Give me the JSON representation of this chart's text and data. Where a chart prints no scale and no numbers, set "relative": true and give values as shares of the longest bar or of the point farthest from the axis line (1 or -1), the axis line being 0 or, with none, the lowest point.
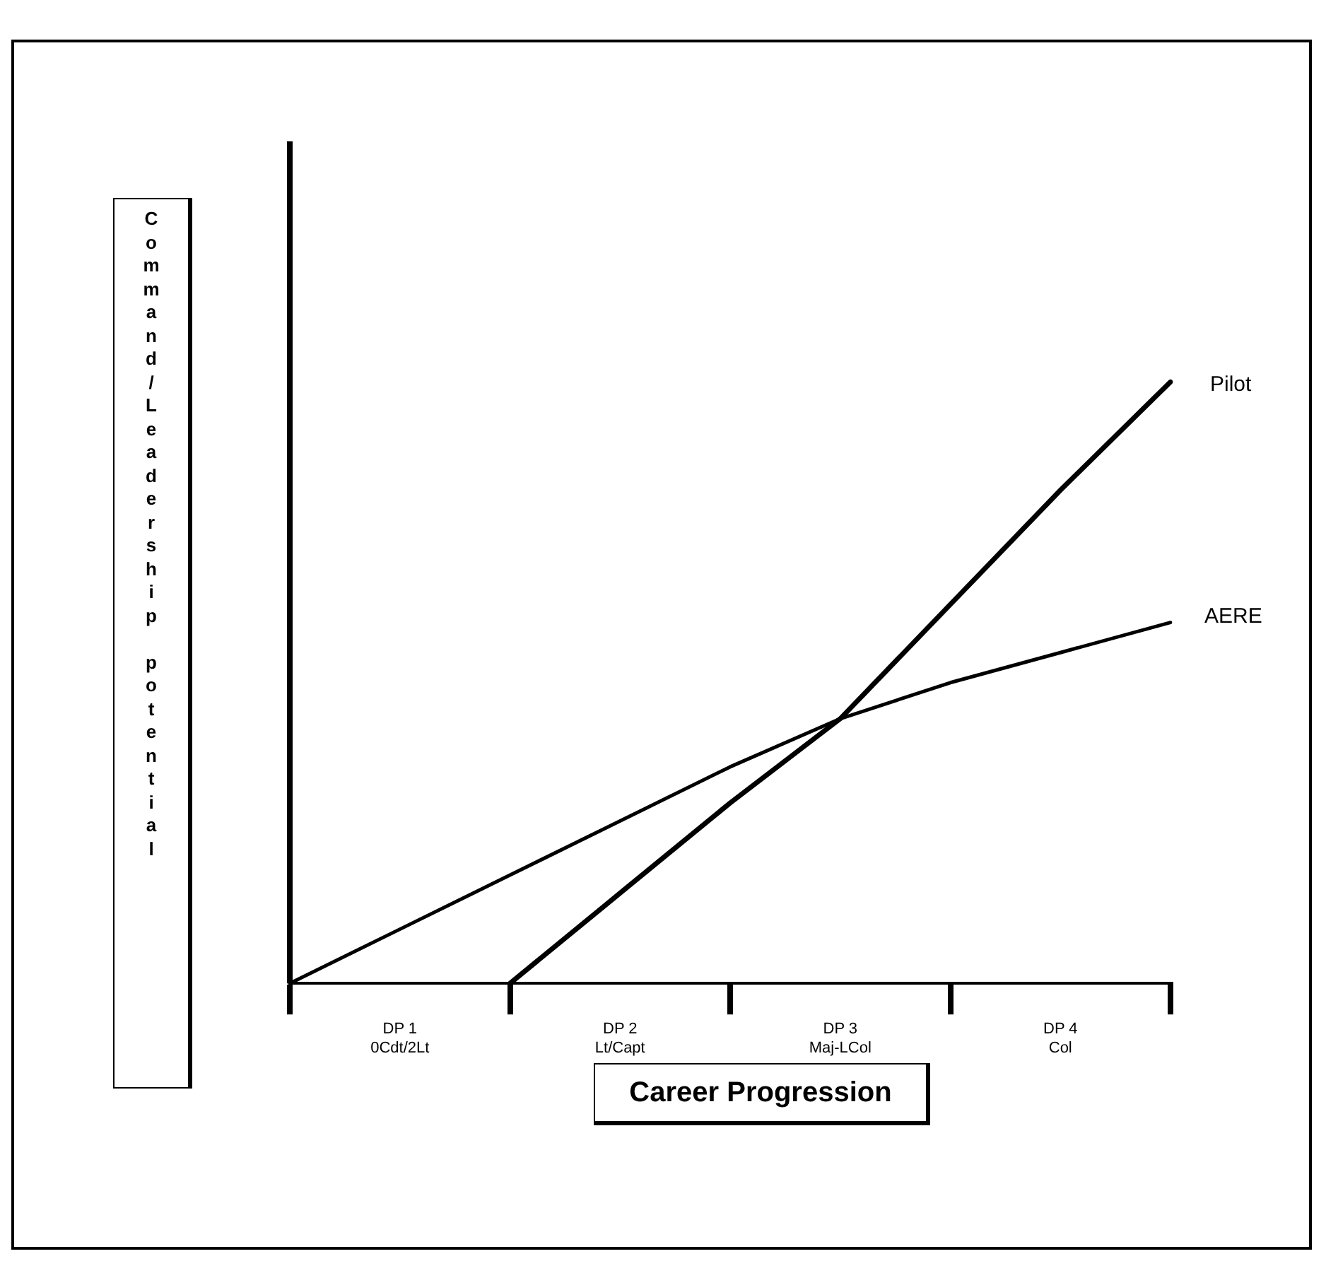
{
  "chart_data": {
    "type": "line",
    "relative": true,
    "ylabel": "Command/Leadership potential",
    "xlabel": "Career Progression",
    "marker": "none",
    "categories": [
      null,
      "DP 1\n0Cdt/2Lt",
      null,
      "DP 2\nLt/Capt",
      null,
      "DP 3\nMaj-LCol",
      null,
      "DP 4\nCol",
      null
    ],
    "series": [
      {
        "name": "Pilot",
        "color": "#000000",
        "values": [
          null,
          null,
          0,
          0.15,
          0.3,
          0.44,
          0.63,
          0.82,
          1
        ]
      },
      {
        "name": "AERE",
        "color": "#000000",
        "values": [
          0,
          0.09,
          0.18,
          0.27,
          0.36,
          0.44,
          0.5,
          0.55,
          0.6
        ]
      }
    ]
  }
}
